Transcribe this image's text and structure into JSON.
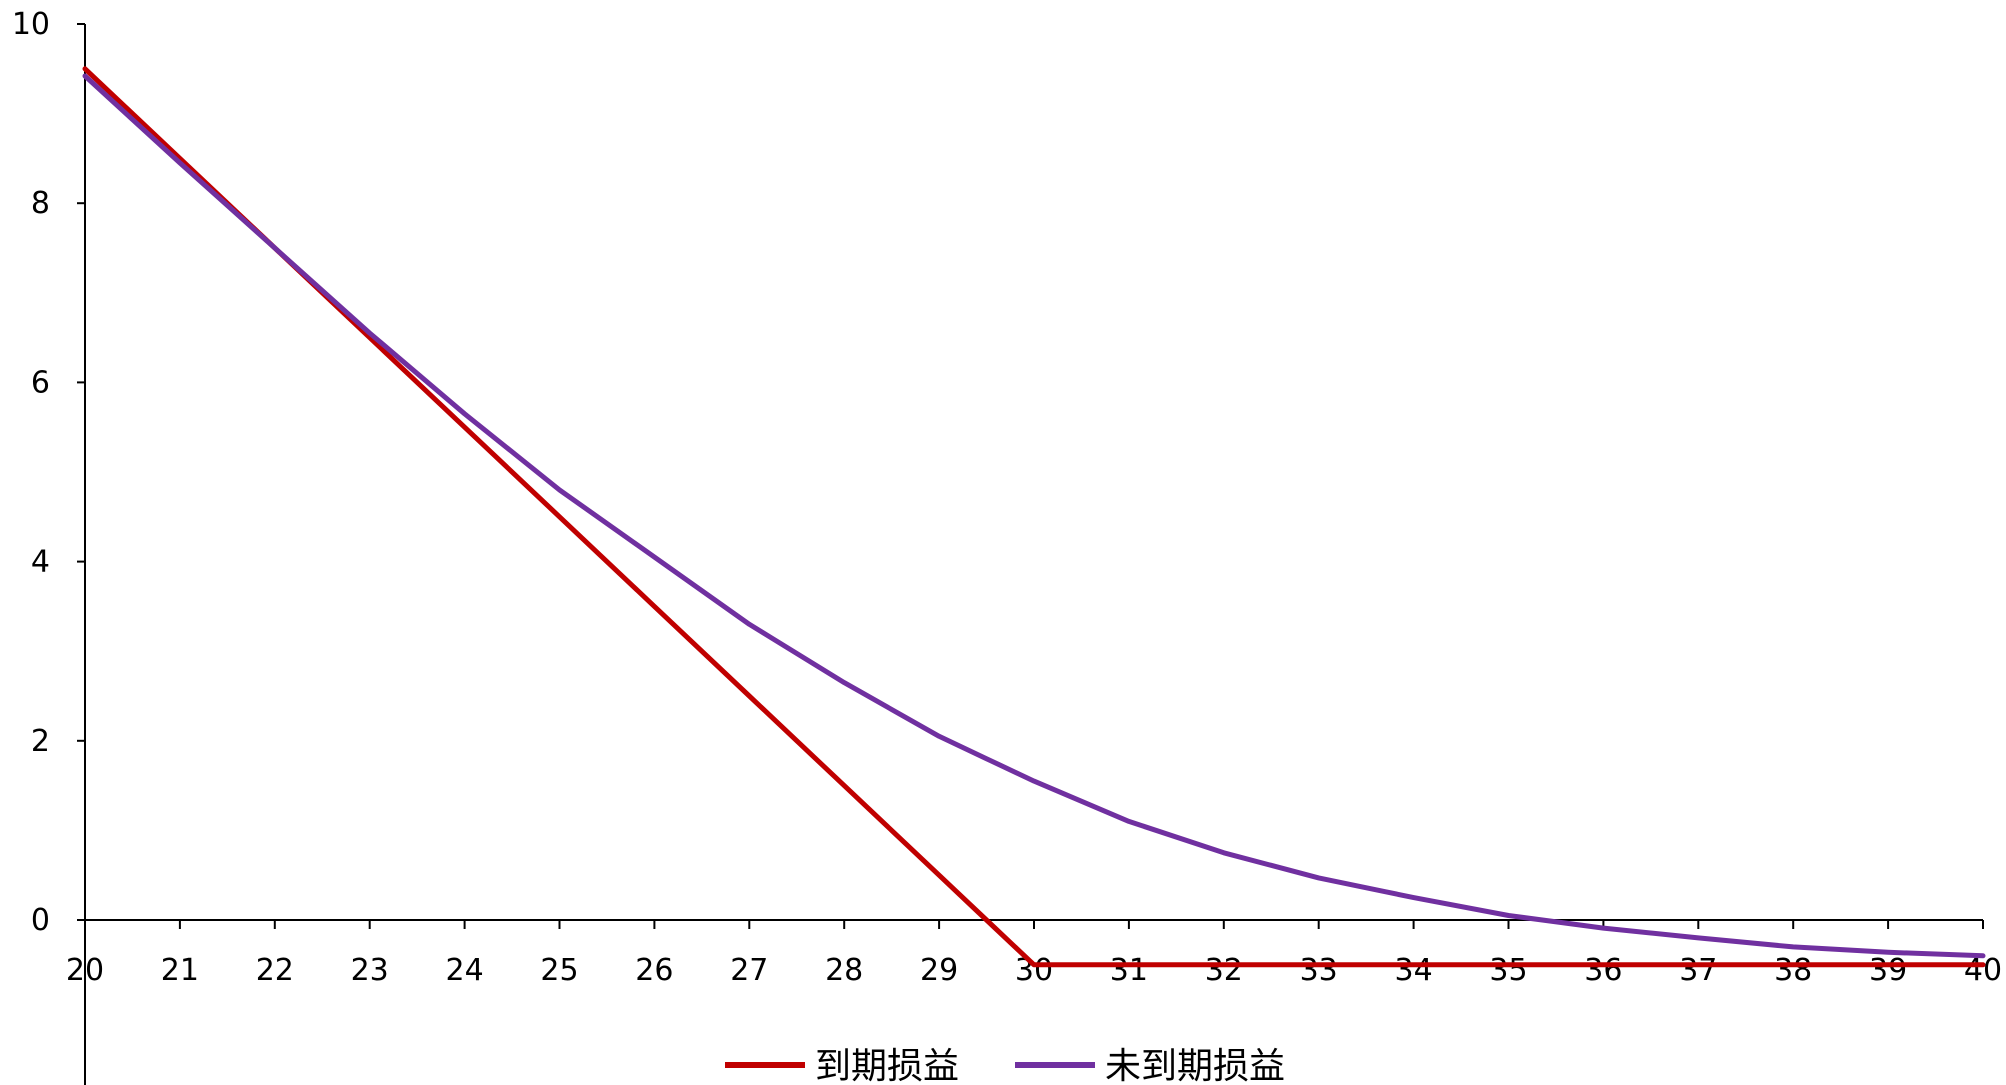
{
  "chart_data": {
    "type": "line",
    "title": "",
    "xlabel": "",
    "ylabel": "",
    "xlim": [
      20,
      40
    ],
    "ylim": [
      -1.8,
      10
    ],
    "x_ticks": [
      "20",
      "21",
      "22",
      "23",
      "24",
      "25",
      "26",
      "27",
      "28",
      "29",
      "30",
      "31",
      "32",
      "33",
      "34",
      "35",
      "36",
      "37",
      "38",
      "39",
      "40"
    ],
    "y_ticks": [
      "10",
      "8",
      "6",
      "4",
      "2",
      "0"
    ],
    "legend_position": "bottom",
    "grid": false,
    "x": [
      20,
      21,
      22,
      23,
      24,
      25,
      26,
      27,
      28,
      29,
      29.5,
      30,
      31,
      32,
      33,
      34,
      35,
      36,
      37,
      38,
      39,
      40
    ],
    "series": [
      {
        "name": "到期损益",
        "color": "#c00000",
        "values": [
          9.5,
          8.5,
          7.5,
          6.5,
          5.5,
          4.5,
          3.5,
          2.5,
          1.5,
          0.5,
          0.0,
          -0.5,
          -0.5,
          -0.5,
          -0.5,
          -0.5,
          -0.5,
          -0.5,
          -0.5,
          -0.5,
          -0.5,
          -0.5
        ]
      },
      {
        "name": "未到期损益",
        "color": "#7030a0",
        "values": [
          9.42,
          8.45,
          7.5,
          6.55,
          5.65,
          4.8,
          4.05,
          3.3,
          2.65,
          2.05,
          1.8,
          1.55,
          1.1,
          0.75,
          0.47,
          0.25,
          0.05,
          -0.09,
          -0.2,
          -0.3,
          -0.36,
          -0.4
        ]
      }
    ]
  }
}
